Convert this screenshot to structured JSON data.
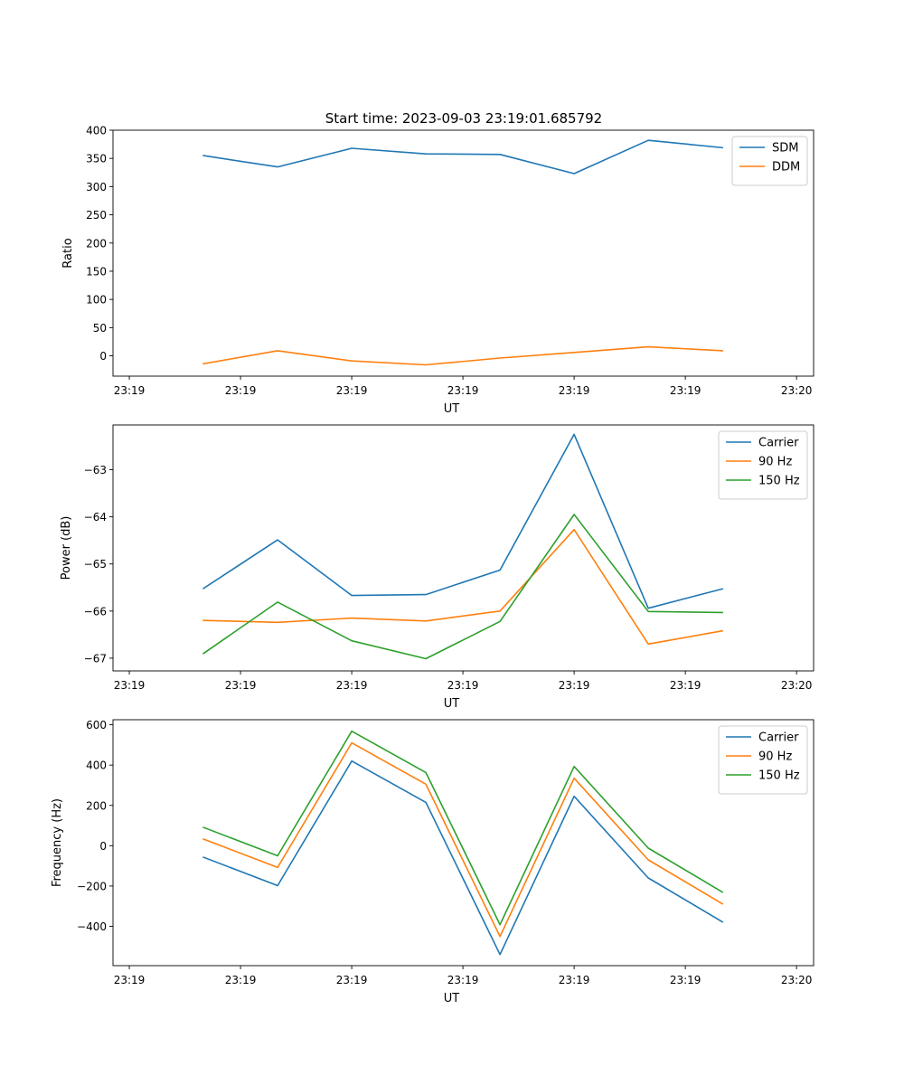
{
  "figure_title": "Start time: 2023-09-03 23:19:01.685792",
  "colors": {
    "blue": "#1f77b4",
    "orange": "#ff7f0e",
    "green": "#2ca02c",
    "axis": "#000000",
    "legend_border": "#cccccc"
  },
  "chart_data": [
    {
      "type": "line",
      "title": "Start time: 2023-09-03 23:19:01.685792",
      "xlabel": "UT",
      "ylabel": "Ratio",
      "x": [
        2.5,
        3.5,
        4.5,
        5.5,
        6.5,
        7.5,
        8.5,
        9.5
      ],
      "xlim": [
        1.28,
        10.73
      ],
      "xticks": [
        1.5,
        3.0,
        4.5,
        6.0,
        7.5,
        9.0,
        10.5
      ],
      "xtick_labels": [
        "23:19",
        "23:19",
        "23:19",
        "23:19",
        "23:19",
        "23:19",
        "23:20"
      ],
      "ylim": [
        -36,
        400
      ],
      "yticks": [
        0,
        50,
        100,
        150,
        200,
        250,
        300,
        350,
        400
      ],
      "ytick_labels": [
        "0",
        "50",
        "100",
        "150",
        "200",
        "250",
        "300",
        "350",
        "400"
      ],
      "legend": "top-right",
      "series": [
        {
          "name": "SDM",
          "color": "#1f77b4",
          "values": [
            355,
            335,
            368,
            358,
            357,
            323,
            382,
            369
          ]
        },
        {
          "name": "DDM",
          "color": "#ff7f0e",
          "values": [
            -14,
            9,
            -9,
            -16,
            -4,
            6,
            16,
            9
          ]
        }
      ]
    },
    {
      "type": "line",
      "title": "",
      "xlabel": "UT",
      "ylabel": "Power (dB)",
      "x": [
        2.5,
        3.5,
        4.5,
        5.5,
        6.5,
        7.5,
        8.5,
        9.5
      ],
      "xlim": [
        1.28,
        10.73
      ],
      "xticks": [
        1.5,
        3.0,
        4.5,
        6.0,
        7.5,
        9.0,
        10.5
      ],
      "xtick_labels": [
        "23:19",
        "23:19",
        "23:19",
        "23:19",
        "23:19",
        "23:19",
        "23:20"
      ],
      "ylim": [
        -67.27,
        -62.05
      ],
      "yticks": [
        -67,
        -66,
        -65,
        -64,
        -63
      ],
      "ytick_labels": [
        "−67",
        "−66",
        "−65",
        "−64",
        "−63"
      ],
      "legend": "top-right",
      "series": [
        {
          "name": "Carrier",
          "color": "#1f77b4",
          "values": [
            -65.52,
            -64.49,
            -65.67,
            -65.65,
            -65.13,
            -62.25,
            -65.94,
            -65.53
          ]
        },
        {
          "name": "90 Hz",
          "color": "#ff7f0e",
          "values": [
            -66.2,
            -66.24,
            -66.15,
            -66.21,
            -66.0,
            -64.27,
            -66.7,
            -66.42
          ]
        },
        {
          "name": "150 Hz",
          "color": "#2ca02c",
          "values": [
            -66.9,
            -65.81,
            -66.63,
            -67.01,
            -66.22,
            -63.95,
            -66.01,
            -66.03
          ]
        }
      ]
    },
    {
      "type": "line",
      "title": "",
      "xlabel": "UT",
      "ylabel": "Frequency (Hz)",
      "x": [
        2.5,
        3.5,
        4.5,
        5.5,
        6.5,
        7.5,
        8.5,
        9.5
      ],
      "xlim": [
        1.28,
        10.73
      ],
      "xticks": [
        1.5,
        3.0,
        4.5,
        6.0,
        7.5,
        9.0,
        10.5
      ],
      "xtick_labels": [
        "23:19",
        "23:19",
        "23:19",
        "23:19",
        "23:19",
        "23:19",
        "23:20"
      ],
      "ylim": [
        -595,
        625
      ],
      "yticks": [
        -400,
        -200,
        0,
        200,
        400,
        600
      ],
      "ytick_labels": [
        "−400",
        "−200",
        "0",
        "200",
        "400",
        "600"
      ],
      "legend": "top-right",
      "series": [
        {
          "name": "Carrier",
          "color": "#1f77b4",
          "values": [
            -57,
            -198,
            420,
            215,
            -540,
            245,
            -160,
            -378
          ]
        },
        {
          "name": "90 Hz",
          "color": "#ff7f0e",
          "values": [
            33,
            -108,
            510,
            305,
            -450,
            335,
            -70,
            -288
          ]
        },
        {
          "name": "150 Hz",
          "color": "#2ca02c",
          "values": [
            91,
            -50,
            568,
            363,
            -392,
            393,
            -12,
            -230
          ]
        }
      ]
    }
  ]
}
